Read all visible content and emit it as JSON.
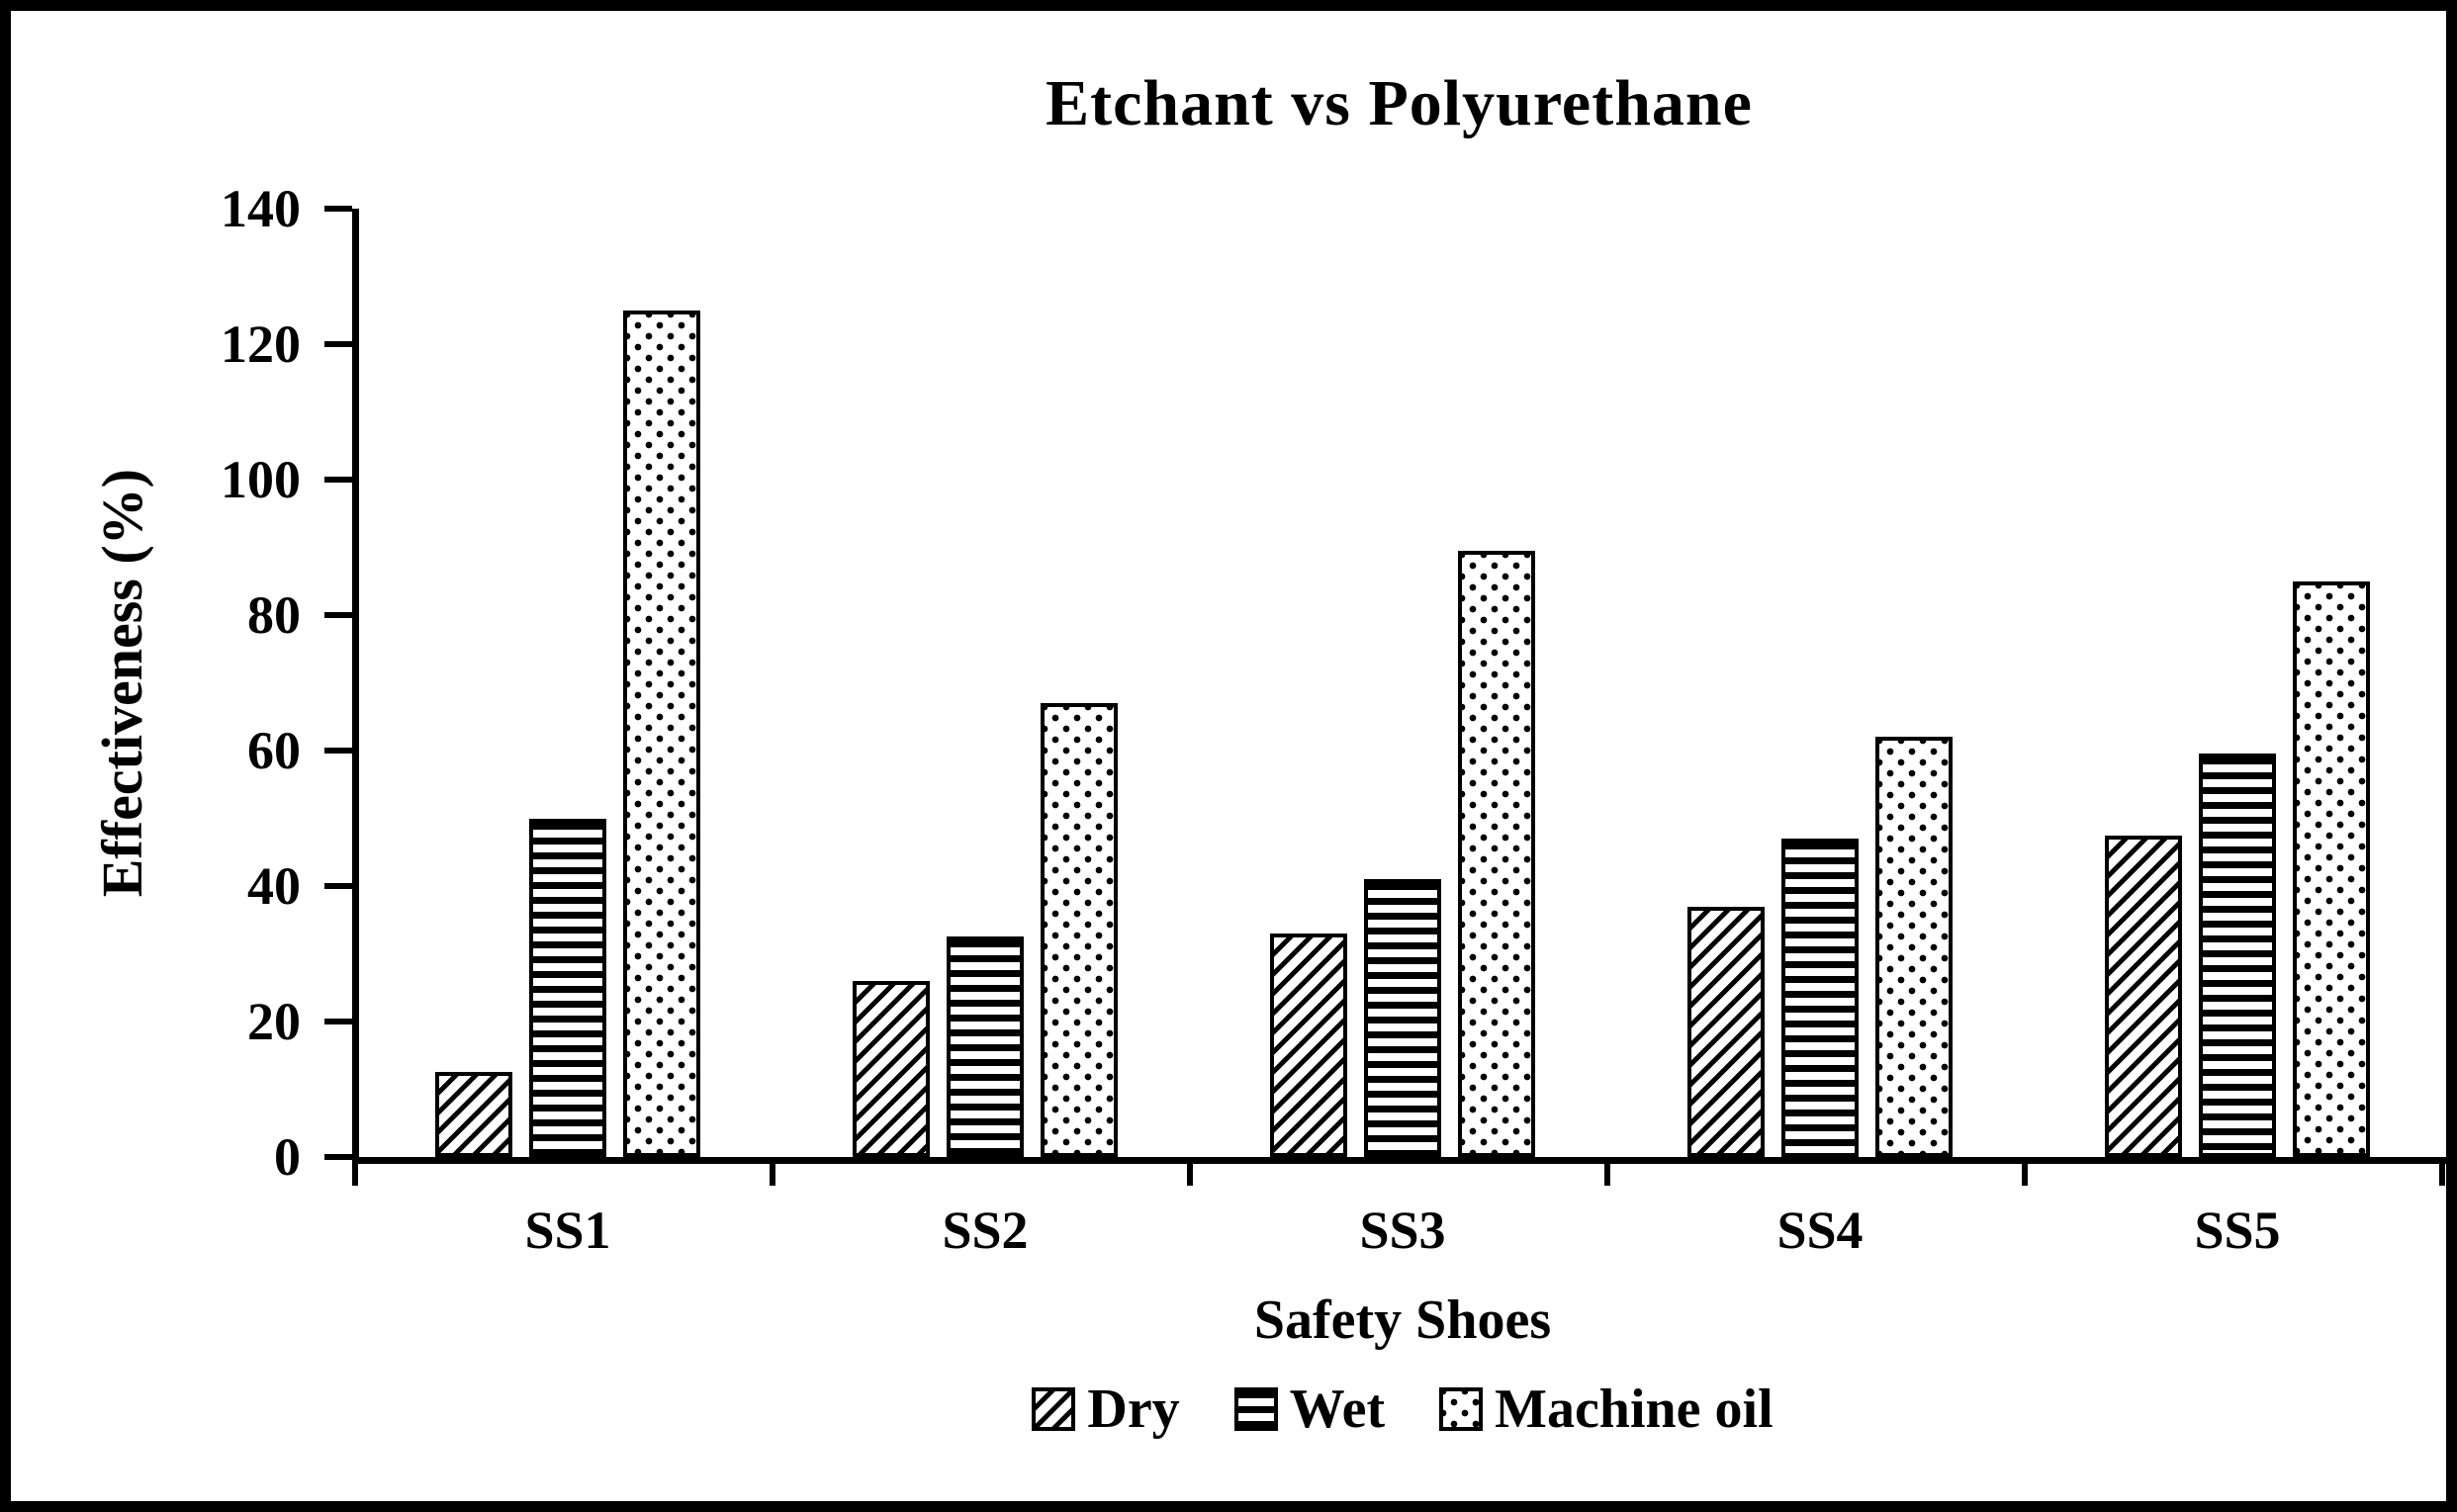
{
  "chart_data": {
    "type": "bar",
    "title": "Etchant vs Polyurethane",
    "xlabel": "Safety Shoes",
    "ylabel": "Effectiveness (%)",
    "categories": [
      "SS1",
      "SS2",
      "SS3",
      "SS4",
      "SS5"
    ],
    "series": [
      {
        "name": "Dry",
        "pattern": "diagonal-hatch",
        "values": [
          12.5,
          26,
          33,
          37,
          47.5
        ]
      },
      {
        "name": "Wet",
        "pattern": "horizontal-lines",
        "values": [
          50,
          32.5,
          41,
          47,
          59.5
        ]
      },
      {
        "name": "Machine oil",
        "pattern": "dots",
        "values": [
          125,
          67,
          89.5,
          62,
          85
        ]
      }
    ],
    "ylim": [
      0,
      140
    ],
    "ytick_step": 20,
    "yticks": [
      0,
      20,
      40,
      60,
      80,
      100,
      120,
      140
    ],
    "legend_position": "bottom",
    "grid": false,
    "colors": {
      "foreground": "#000000",
      "background": "#ffffff"
    }
  }
}
